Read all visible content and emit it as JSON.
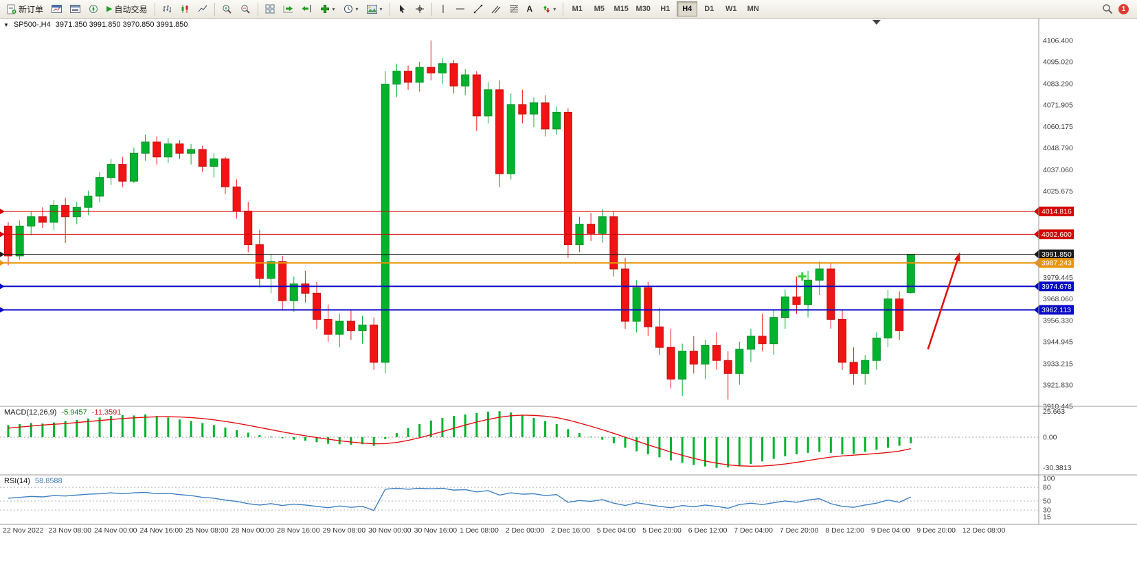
{
  "toolbar": {
    "new_order": "新订单",
    "autotrading": "自动交易",
    "text_tool": "A",
    "timeframes": [
      "M1",
      "M5",
      "M15",
      "M30",
      "H1",
      "H4",
      "D1",
      "W1",
      "MN"
    ],
    "active_timeframe": "H4",
    "notification_count": "1"
  },
  "chart": {
    "symbol_period": "SP500-,H4",
    "ohlc": "3971.350 3991.850 3970.850 3991.850"
  },
  "colors": {
    "candle_up": "#00b22d",
    "candle_up_border": "#008f24",
    "candle_down": "#f01414",
    "candle_down_border": "#c40e0e",
    "macd_hist": "#00b22d",
    "macd_signal": "#e01010",
    "rsi_line": "#3e7fc1",
    "axis_text": "#3a3a3a",
    "panel_border": "#9a9a9a",
    "annotation_red": "#e01010",
    "marker_green": "#2fd12f"
  },
  "chart_data": {
    "type": "candlestick",
    "symbol": "SP500-",
    "period": "H4",
    "y_top": 4106.4,
    "y_bottom": 3910.445,
    "candles": [
      [
        4007,
        4009,
        3986,
        3991
      ],
      [
        3991,
        4010,
        3989,
        4007
      ],
      [
        4007,
        4015,
        4002,
        4012
      ],
      [
        4012,
        4017,
        4006,
        4009
      ],
      [
        4009,
        4021,
        4005,
        4018
      ],
      [
        4018,
        4022,
        3998,
        4012
      ],
      [
        4012,
        4020,
        4008,
        4017
      ],
      [
        4017,
        4026,
        4013,
        4023
      ],
      [
        4023,
        4036,
        4020,
        4033
      ],
      [
        4033,
        4043,
        4029,
        4040
      ],
      [
        4040,
        4044,
        4028,
        4031
      ],
      [
        4031,
        4049,
        4030,
        4046
      ],
      [
        4046,
        4056,
        4042,
        4052
      ],
      [
        4052,
        4055,
        4040,
        4044
      ],
      [
        4044,
        4054,
        4041,
        4051
      ],
      [
        4051,
        4053,
        4043,
        4046
      ],
      [
        4046,
        4051,
        4040,
        4048
      ],
      [
        4048,
        4050,
        4036,
        4039
      ],
      [
        4039,
        4046,
        4033,
        4043
      ],
      [
        4043,
        4044,
        4024,
        4028
      ],
      [
        4028,
        4032,
        4011,
        4015
      ],
      [
        4015,
        4020,
        3993,
        3997
      ],
      [
        3997,
        4005,
        3974,
        3979
      ],
      [
        3979,
        3992,
        3971,
        3988
      ],
      [
        3988,
        3991,
        3962,
        3967
      ],
      [
        3967,
        3980,
        3961,
        3976
      ],
      [
        3976,
        3983,
        3966,
        3971
      ],
      [
        3971,
        3977,
        3952,
        3957
      ],
      [
        3957,
        3965,
        3945,
        3949
      ],
      [
        3949,
        3960,
        3942,
        3956
      ],
      [
        3956,
        3962,
        3946,
        3951
      ],
      [
        3951,
        3959,
        3944,
        3954
      ],
      [
        3954,
        3958,
        3930,
        3934
      ],
      [
        3934,
        4090,
        3928,
        4083
      ],
      [
        4083,
        4094,
        4076,
        4090
      ],
      [
        4090,
        4093,
        4080,
        4084
      ],
      [
        4084,
        4095,
        4079,
        4092
      ],
      [
        4092,
        4106.4,
        4085,
        4089
      ],
      [
        4089,
        4097,
        4083,
        4094
      ],
      [
        4094,
        4096,
        4078,
        4082
      ],
      [
        4082,
        4091,
        4077,
        4088
      ],
      [
        4088,
        4090,
        4058,
        4066
      ],
      [
        4066,
        4084,
        4062,
        4080
      ],
      [
        4080,
        4085,
        4028,
        4035
      ],
      [
        4035,
        4078,
        4032,
        4072
      ],
      [
        4072,
        4080,
        4062,
        4067
      ],
      [
        4067,
        4076,
        4060,
        4073
      ],
      [
        4073,
        4077,
        4055,
        4059
      ],
      [
        4059,
        4071,
        4056,
        4068
      ],
      [
        4068,
        4070,
        3990,
        3997
      ],
      [
        3997,
        4012,
        3993,
        4008
      ],
      [
        4008,
        4014,
        3999,
        4003
      ],
      [
        4003,
        4016,
        3998,
        4012
      ],
      [
        4012,
        4015,
        3980,
        3984
      ],
      [
        3984,
        3990,
        3952,
        3956
      ],
      [
        3956,
        3978,
        3950,
        3974
      ],
      [
        3974,
        3977,
        3948,
        3953
      ],
      [
        3953,
        3963,
        3938,
        3942
      ],
      [
        3942,
        3952,
        3920,
        3925
      ],
      [
        3925,
        3944,
        3916,
        3940
      ],
      [
        3940,
        3948,
        3928,
        3933
      ],
      [
        3933,
        3946,
        3925,
        3943
      ],
      [
        3943,
        3950,
        3930,
        3935
      ],
      [
        3935,
        3940,
        3914,
        3928
      ],
      [
        3928,
        3945,
        3922,
        3941
      ],
      [
        3941,
        3952,
        3934,
        3948
      ],
      [
        3948,
        3960,
        3940,
        3944
      ],
      [
        3944,
        3962,
        3938,
        3958
      ],
      [
        3958,
        3973,
        3952,
        3969
      ],
      [
        3969,
        3980,
        3960,
        3965
      ],
      [
        3965,
        3983,
        3958,
        3978
      ],
      [
        3978,
        3988,
        3970,
        3984
      ],
      [
        3984,
        3987,
        3952,
        3957
      ],
      [
        3957,
        3962,
        3930,
        3934
      ],
      [
        3934,
        3942,
        3922,
        3928
      ],
      [
        3928,
        3938,
        3922,
        3935
      ],
      [
        3935,
        3950,
        3930,
        3947
      ],
      [
        3947,
        3973,
        3942,
        3968
      ],
      [
        3968,
        3972,
        3946,
        3951
      ],
      [
        3971.35,
        3991.85,
        3970.85,
        3991.85
      ]
    ],
    "hlines": [
      {
        "label": "4014.816",
        "price": 4014.816,
        "color": "#d40000",
        "width": 1
      },
      {
        "label": "4002.600",
        "price": 4002.6,
        "color": "#d40000",
        "width": 1
      },
      {
        "label": "3991.850",
        "price": 3991.85,
        "color": "#1a1a1a",
        "width": 1
      },
      {
        "label": "3987.243",
        "price": 3987.243,
        "color": "#e8940a",
        "width": 2
      },
      {
        "label": "3974.678",
        "price": 3974.678,
        "color": "#0a0ac8",
        "width": 2
      },
      {
        "label": "3962.113",
        "price": 3962.113,
        "color": "#0a0ac8",
        "width": 2
      }
    ],
    "y_axis_labels": [
      "4106.400",
      "4095.020",
      "4083.290",
      "4071.905",
      "4060.175",
      "4048.790",
      "4037.060",
      "4025.675",
      "3979.445",
      "3968.060",
      "3956.330",
      "3944.945",
      "3933.215",
      "3921.830",
      "3910.445"
    ],
    "x_axis_labels": [
      "22 Nov 2022",
      "23 Nov 08:00",
      "24 Nov 00:00",
      "24 Nov 16:00",
      "25 Nov 08:00",
      "28 Nov 00:00",
      "28 Nov 16:00",
      "29 Nov 08:00",
      "30 Nov 00:00",
      "30 Nov 16:00",
      "1 Dec 08:00",
      "2 Dec 00:00",
      "2 Dec 16:00",
      "5 Dec 04:00",
      "5 Dec 20:00",
      "6 Dec 12:00",
      "7 Dec 04:00",
      "7 Dec 20:00",
      "8 Dec 12:00",
      "9 Dec 04:00",
      "9 Dec 20:00",
      "12 Dec 08:00"
    ],
    "macd": {
      "params": "MACD(12,26,9)",
      "value_text": "-5.9457",
      "signal_text": "-11.3591",
      "scale_labels": [
        "25.663",
        "0.00",
        "-30.3813"
      ],
      "hist": [
        12,
        13,
        14,
        13.5,
        14.5,
        16,
        17,
        18.5,
        19.5,
        21,
        22,
        21.5,
        22.5,
        21,
        19.5,
        17.5,
        16,
        14,
        12,
        9.5,
        7,
        4.5,
        2,
        0.5,
        -1,
        -2.5,
        -3.5,
        -5,
        -6.5,
        -7,
        -7.5,
        -7,
        -8.5,
        -2,
        4,
        9,
        13,
        16.5,
        19,
        21,
        22.5,
        24,
        25.3,
        25.663,
        24.5,
        22,
        19,
        16,
        13,
        8,
        4,
        0.5,
        -2.5,
        -6,
        -10.5,
        -14,
        -17,
        -20,
        -23,
        -25.5,
        -27.5,
        -29,
        -30.3813,
        -30,
        -28.5,
        -26.5,
        -24,
        -21.5,
        -19,
        -17,
        -15.5,
        -14.5,
        -15.5,
        -17,
        -16.5,
        -14.5,
        -12.5,
        -10.5,
        -8.5,
        -5.9457
      ],
      "signal": [
        9,
        10,
        11,
        12,
        12.8,
        13.5,
        14.5,
        15.5,
        16.5,
        17.5,
        18.5,
        19.2,
        19.8,
        20.2,
        20.3,
        20,
        19.4,
        18.5,
        17.2,
        15.6,
        13.8,
        11.8,
        9.6,
        7.4,
        5.2,
        3.2,
        1.4,
        -0.4,
        -2,
        -3.5,
        -4.8,
        -5.8,
        -6.6,
        -6.4,
        -5.2,
        -3.2,
        -0.6,
        2.4,
        5.6,
        8.8,
        12,
        15,
        17.6,
        19.8,
        21.2,
        21.8,
        21.6,
        20.8,
        19.4,
        17,
        14,
        10.8,
        7.4,
        3.8,
        0,
        -3.8,
        -7.6,
        -11.2,
        -14.8,
        -18,
        -21,
        -23.6,
        -25.8,
        -27.4,
        -28.4,
        -28.8,
        -28.6,
        -27.8,
        -26.6,
        -25,
        -23.2,
        -21.4,
        -19.8,
        -18.6,
        -17.8,
        -17,
        -16.2,
        -15.2,
        -13.8,
        -11.3591
      ]
    },
    "rsi": {
      "params": "RSI(14)",
      "value_text": "58.8588",
      "scale_labels": [
        "100",
        "80",
        "50",
        "30",
        "15"
      ],
      "levels": [
        80,
        50,
        30
      ],
      "values": [
        56,
        58,
        60,
        59,
        62,
        61,
        63,
        65,
        66,
        68,
        66,
        68,
        69,
        66,
        67,
        64,
        62,
        58,
        56,
        52,
        49,
        44,
        41,
        44,
        40,
        43,
        41,
        38,
        35,
        39,
        36,
        38,
        29,
        76,
        78,
        76,
        78,
        77,
        78,
        74,
        75,
        70,
        73,
        63,
        68,
        65,
        66,
        62,
        64,
        47,
        51,
        49,
        53,
        45,
        40,
        46,
        42,
        38,
        35,
        40,
        37,
        41,
        38,
        34,
        42,
        45,
        42,
        46,
        50,
        47,
        52,
        55,
        44,
        38,
        36,
        41,
        45,
        52,
        47,
        58.8588
      ]
    },
    "annotations": {
      "trend_arrow": {
        "from": {
          "index": 80.5,
          "price": 3941
        },
        "to": {
          "index": 83.3,
          "price": 3993
        }
      },
      "plus_marker": {
        "index": 69.5,
        "price": 3980
      },
      "shift_marker_index": 76
    }
  }
}
